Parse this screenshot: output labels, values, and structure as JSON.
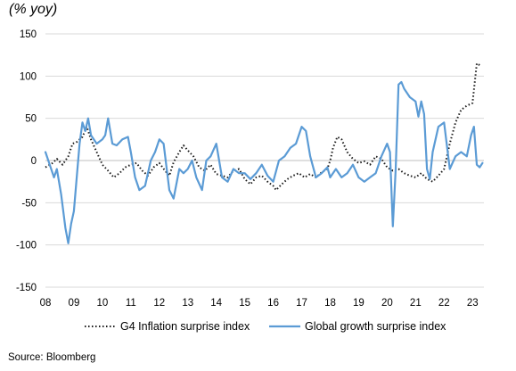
{
  "chart_data": {
    "type": "line",
    "unit_label": "(% yoy)",
    "source": "Source: Bloomberg",
    "xlabel": "",
    "ylabel": "",
    "ylim": [
      -150,
      150
    ],
    "xlim": [
      2008.0,
      2023.4
    ],
    "grid": "horizontal",
    "legend_position": "bottom",
    "y_ticks": [
      "150",
      "100",
      "50",
      "0",
      "-50",
      "-100",
      "-150"
    ],
    "y_tick_values": [
      150,
      100,
      50,
      0,
      -50,
      -100,
      -150
    ],
    "x_ticks": [
      "08",
      "09",
      "10",
      "11",
      "12",
      "13",
      "14",
      "15",
      "16",
      "17",
      "18",
      "19",
      "20",
      "21",
      "22",
      "23"
    ],
    "x_tick_values": [
      2008,
      2009,
      2010,
      2011,
      2012,
      2013,
      2014,
      2015,
      2016,
      2017,
      2018,
      2019,
      2020,
      2021,
      2022,
      2023
    ],
    "series": [
      {
        "name": "G4 Inflation surprise index",
        "color": "#1a1a1a",
        "style": "dotted",
        "x": [
          2008.0,
          2008.25,
          2008.4,
          2008.6,
          2008.8,
          2008.95,
          2009.1,
          2009.3,
          2009.45,
          2009.6,
          2009.8,
          2010.0,
          2010.2,
          2010.4,
          2010.6,
          2010.8,
          2011.0,
          2011.2,
          2011.4,
          2011.6,
          2011.8,
          2012.0,
          2012.2,
          2012.35,
          2012.5,
          2012.7,
          2012.85,
          2013.0,
          2013.2,
          2013.4,
          2013.6,
          2013.8,
          2014.0,
          2014.2,
          2014.4,
          2014.6,
          2014.8,
          2015.0,
          2015.2,
          2015.4,
          2015.6,
          2015.8,
          2016.0,
          2016.1,
          2016.3,
          2016.5,
          2016.7,
          2016.9,
          2017.1,
          2017.3,
          2017.5,
          2017.7,
          2017.9,
          2018.0,
          2018.1,
          2018.25,
          2018.4,
          2018.6,
          2018.8,
          2019.0,
          2019.2,
          2019.4,
          2019.6,
          2019.8,
          2020.0,
          2020.2,
          2020.4,
          2020.6,
          2020.8,
          2021.0,
          2021.2,
          2021.4,
          2021.6,
          2021.8,
          2022.0,
          2022.2,
          2022.4,
          2022.6,
          2022.8,
          2023.0,
          2023.15,
          2023.3
        ],
        "y": [
          -8,
          -3,
          2,
          -5,
          5,
          20,
          22,
          28,
          40,
          25,
          10,
          -5,
          -12,
          -20,
          -15,
          -8,
          -5,
          -3,
          -12,
          -18,
          -8,
          -3,
          -12,
          -18,
          -2,
          10,
          18,
          12,
          5,
          -8,
          -12,
          -5,
          -16,
          -18,
          -20,
          -12,
          -10,
          -22,
          -28,
          -20,
          -18,
          -25,
          -30,
          -35,
          -28,
          -22,
          -18,
          -15,
          -20,
          -16,
          -20,
          -14,
          -10,
          0,
          15,
          28,
          25,
          10,
          2,
          -3,
          -1,
          -5,
          5,
          2,
          -8,
          -12,
          -10,
          -15,
          -18,
          -20,
          -15,
          -22,
          -25,
          -18,
          -10,
          20,
          45,
          60,
          65,
          68,
          115,
          112
        ],
        "lw": 2.0
      },
      {
        "name": "Global growth surprise index",
        "color": "#5b9bd5",
        "style": "solid",
        "x": [
          2008.0,
          2008.15,
          2008.3,
          2008.4,
          2008.55,
          2008.7,
          2008.8,
          2008.9,
          2009.0,
          2009.1,
          2009.2,
          2009.3,
          2009.4,
          2009.5,
          2009.6,
          2009.8,
          2010.0,
          2010.1,
          2010.2,
          2010.35,
          2010.5,
          2010.7,
          2010.9,
          2011.0,
          2011.15,
          2011.3,
          2011.5,
          2011.7,
          2011.85,
          2012.0,
          2012.15,
          2012.35,
          2012.5,
          2012.7,
          2012.85,
          2013.0,
          2013.15,
          2013.3,
          2013.5,
          2013.65,
          2013.8,
          2014.0,
          2014.2,
          2014.4,
          2014.6,
          2014.8,
          2015.0,
          2015.2,
          2015.4,
          2015.6,
          2015.8,
          2016.0,
          2016.2,
          2016.4,
          2016.6,
          2016.8,
          2017.0,
          2017.15,
          2017.3,
          2017.5,
          2017.7,
          2017.9,
          2018.0,
          2018.2,
          2018.4,
          2018.6,
          2018.8,
          2019.0,
          2019.2,
          2019.4,
          2019.6,
          2019.8,
          2020.0,
          2020.1,
          2020.2,
          2020.3,
          2020.4,
          2020.5,
          2020.6,
          2020.8,
          2021.0,
          2021.1,
          2021.2,
          2021.3,
          2021.4,
          2021.5,
          2021.6,
          2021.8,
          2022.0,
          2022.2,
          2022.4,
          2022.6,
          2022.8,
          2022.95,
          2023.05,
          2023.15,
          2023.25,
          2023.35
        ],
        "y": [
          10,
          -5,
          -20,
          -10,
          -40,
          -80,
          -98,
          -75,
          -60,
          -20,
          20,
          45,
          35,
          50,
          30,
          20,
          25,
          30,
          50,
          20,
          18,
          25,
          28,
          10,
          -20,
          -35,
          -30,
          0,
          10,
          25,
          20,
          -35,
          -45,
          -10,
          -15,
          -10,
          0,
          -20,
          -35,
          0,
          5,
          20,
          -20,
          -25,
          -10,
          -15,
          -15,
          -22,
          -15,
          -5,
          -18,
          -25,
          0,
          5,
          15,
          20,
          40,
          35,
          5,
          -20,
          -15,
          -8,
          -20,
          -10,
          -20,
          -15,
          -5,
          -20,
          -25,
          -20,
          -15,
          5,
          20,
          10,
          -78,
          -10,
          90,
          93,
          85,
          75,
          70,
          52,
          70,
          55,
          -10,
          -22,
          10,
          40,
          45,
          -10,
          5,
          10,
          5,
          30,
          40,
          -5,
          -8,
          -3
        ],
        "lw": 2.2
      }
    ]
  }
}
